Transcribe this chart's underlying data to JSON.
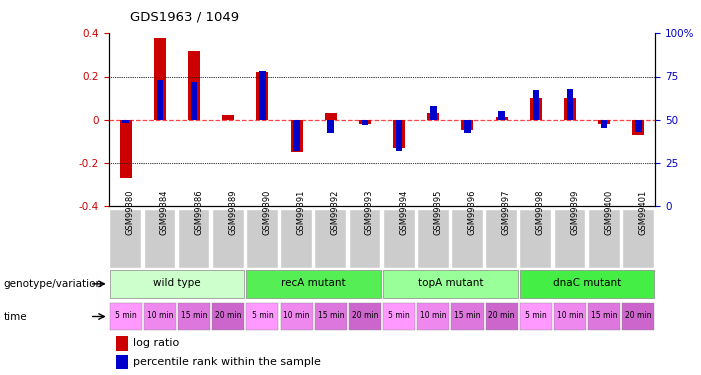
{
  "title": "GDS1963 / 1049",
  "samples": [
    "GSM99380",
    "GSM99384",
    "GSM99386",
    "GSM99389",
    "GSM99390",
    "GSM99391",
    "GSM99392",
    "GSM99393",
    "GSM99394",
    "GSM99395",
    "GSM99396",
    "GSM99397",
    "GSM99398",
    "GSM99399",
    "GSM99400",
    "GSM99401"
  ],
  "log_ratio": [
    -0.27,
    0.38,
    0.32,
    0.02,
    0.22,
    -0.15,
    0.03,
    -0.02,
    -0.13,
    0.03,
    -0.05,
    0.01,
    0.1,
    0.1,
    -0.02,
    -0.07
  ],
  "percentile_rank": [
    48,
    73,
    72,
    50,
    78,
    32,
    42,
    47,
    32,
    58,
    42,
    55,
    67,
    68,
    45,
    43
  ],
  "ylim_left": [
    -0.4,
    0.4
  ],
  "ylim_right": [
    0,
    100
  ],
  "groups": [
    {
      "label": "wild type",
      "start": 0,
      "end": 4,
      "color": "#ccffcc"
    },
    {
      "label": "recA mutant",
      "start": 4,
      "end": 8,
      "color": "#55ee55"
    },
    {
      "label": "topA mutant",
      "start": 8,
      "end": 12,
      "color": "#99ff99"
    },
    {
      "label": "dnaC mutant",
      "start": 12,
      "end": 16,
      "color": "#44ee44"
    }
  ],
  "times": [
    "5 min",
    "10 min",
    "15 min",
    "20 min",
    "5 min",
    "10 min",
    "15 min",
    "20 min",
    "5 min",
    "10 min",
    "15 min",
    "20 min",
    "5 min",
    "10 min",
    "15 min",
    "20 min"
  ],
  "time_colors": [
    "#ff99ff",
    "#ee88ee",
    "#dd77dd",
    "#cc66cc",
    "#ff99ff",
    "#ee88ee",
    "#dd77dd",
    "#cc66cc",
    "#ff99ff",
    "#ee88ee",
    "#dd77dd",
    "#cc66cc",
    "#ff99ff",
    "#ee88ee",
    "#dd77dd",
    "#cc66cc"
  ],
  "bar_color_red": "#cc0000",
  "bar_color_blue": "#0000cc",
  "hline_color": "#ff4444",
  "bg_color": "#ffffff",
  "tick_color_left": "#cc0000",
  "tick_color_right": "#0000cc",
  "sample_bg": "#cccccc",
  "label_genotype": "genotype/variation",
  "label_time": "time",
  "legend_log": "log ratio",
  "legend_pct": "percentile rank within the sample"
}
